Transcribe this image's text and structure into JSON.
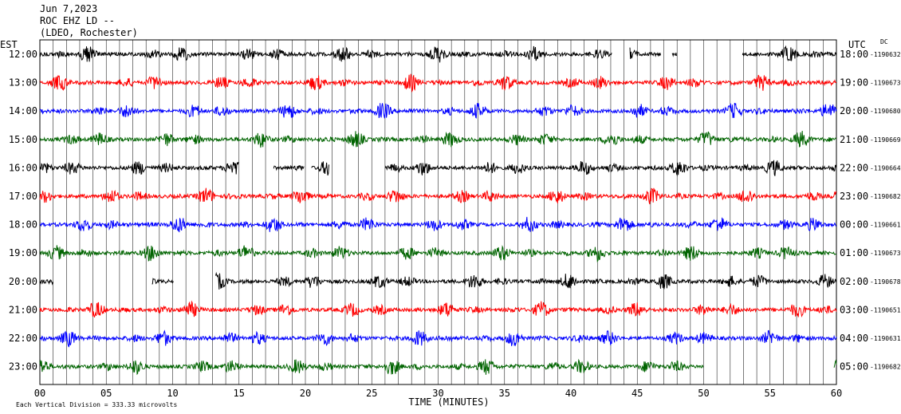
{
  "header": {
    "date": "Jun 7,2023",
    "station": "ROC EHZ LD --",
    "network": "(LDEO, Rochester)"
  },
  "left_axis_title": "EST",
  "right_axis_title": "UTC",
  "dc_label": "DC",
  "footer_note": "Each Vertical Division = 333.33 microvolts",
  "chart_data": {
    "type": "line",
    "title": "",
    "xlabel": "TIME (MINUTES)",
    "xlim": [
      0,
      60
    ],
    "x_ticks": [
      "00",
      "05",
      "10",
      "15",
      "20",
      "25",
      "30",
      "35",
      "40",
      "45",
      "50",
      "55",
      "60"
    ],
    "x_tick_values": [
      0,
      5,
      10,
      15,
      20,
      25,
      30,
      35,
      40,
      45,
      50,
      55,
      60
    ],
    "grid": "vertical lines every minute",
    "trace_colors": [
      "#000000",
      "#ff0000",
      "#0000ff",
      "#006400"
    ],
    "rows": [
      {
        "est": "12:00",
        "utc": "18:00",
        "dc": "-1190632",
        "color": "#000000",
        "gaps": [
          [
            43.1,
            44.4
          ],
          [
            46.8,
            47.6
          ],
          [
            48.0,
            52.9
          ]
        ]
      },
      {
        "est": "13:00",
        "utc": "19:00",
        "dc": "-1190673",
        "color": "#ff0000",
        "gaps": []
      },
      {
        "est": "14:00",
        "utc": "20:00",
        "dc": "-1190680",
        "color": "#0000ff",
        "gaps": []
      },
      {
        "est": "15:00",
        "utc": "21:00",
        "dc": "-1190669",
        "color": "#006400",
        "gaps": []
      },
      {
        "est": "16:00",
        "utc": "22:00",
        "dc": "-1190664",
        "color": "#000000",
        "gaps": [
          [
            15.0,
            17.6
          ],
          [
            19.9,
            20.4
          ],
          [
            21.8,
            26.0
          ]
        ]
      },
      {
        "est": "17:00",
        "utc": "23:00",
        "dc": "-1190682",
        "color": "#ff0000",
        "gaps": []
      },
      {
        "est": "18:00",
        "utc": "00:00",
        "dc": "-1190661",
        "color": "#0000ff",
        "gaps": []
      },
      {
        "est": "19:00",
        "utc": "01:00",
        "dc": "-1190673",
        "color": "#006400",
        "gaps": []
      },
      {
        "est": "20:00",
        "utc": "02:00",
        "dc": "-1190678",
        "color": "#000000",
        "gaps": [
          [
            1.0,
            8.4
          ],
          [
            10.1,
            13.2
          ]
        ]
      },
      {
        "est": "21:00",
        "utc": "03:00",
        "dc": "-1190651",
        "color": "#ff0000",
        "gaps": []
      },
      {
        "est": "22:00",
        "utc": "04:00",
        "dc": "-1190631",
        "color": "#0000ff",
        "gaps": []
      },
      {
        "est": "23:00",
        "utc": "05:00",
        "dc": "-1190682",
        "color": "#006400",
        "gaps": [
          [
            50.0,
            59.8
          ]
        ]
      }
    ]
  }
}
